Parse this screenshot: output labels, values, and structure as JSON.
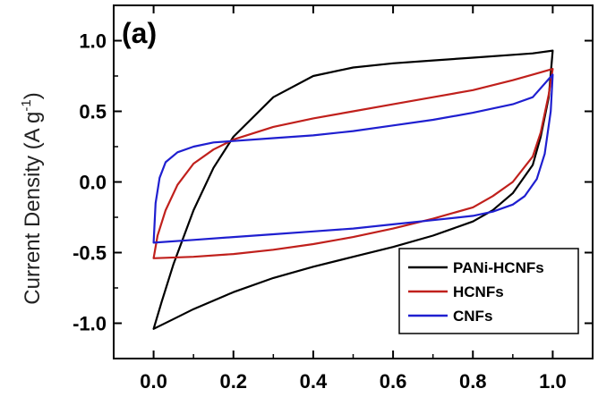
{
  "chart_data": {
    "type": "line",
    "panel_label": "(a)",
    "title": "",
    "xlabel": "",
    "ylabel": "Current Density (A g⁻¹)",
    "ylabel_main": "Current Density (A g",
    "ylabel_sup": "-1",
    "ylabel_close": ")",
    "xlim": [
      -0.1,
      1.1
    ],
    "ylim": [
      -1.25,
      1.25
    ],
    "x_ticks": [
      0.0,
      0.2,
      0.4,
      0.6,
      0.8,
      1.0
    ],
    "x_tick_labels": [
      "0.0",
      "0.2",
      "0.4",
      "0.6",
      "0.8",
      "1.0"
    ],
    "y_ticks": [
      -1.0,
      -0.5,
      0.0,
      0.5,
      1.0
    ],
    "y_tick_labels": [
      "-1.0",
      "-0.5",
      "0.0",
      "0.5",
      "1.0"
    ],
    "grid": false,
    "legend_position": "bottom-right",
    "series": [
      {
        "name": "PANi-HCNFs",
        "color": "#000000",
        "x": [
          0.0,
          0.02,
          0.05,
          0.1,
          0.15,
          0.2,
          0.3,
          0.4,
          0.5,
          0.6,
          0.7,
          0.8,
          0.9,
          0.95,
          1.0,
          0.99,
          0.97,
          0.95,
          0.9,
          0.85,
          0.8,
          0.7,
          0.6,
          0.5,
          0.4,
          0.3,
          0.2,
          0.1,
          0.05,
          0.0
        ],
        "y": [
          -1.04,
          -0.85,
          -0.58,
          -0.2,
          0.1,
          0.32,
          0.6,
          0.75,
          0.81,
          0.84,
          0.86,
          0.88,
          0.9,
          0.91,
          0.93,
          0.6,
          0.32,
          0.12,
          -0.08,
          -0.2,
          -0.28,
          -0.38,
          -0.46,
          -0.53,
          -0.6,
          -0.68,
          -0.78,
          -0.9,
          -0.97,
          -1.04
        ]
      },
      {
        "name": "HCNFs",
        "color": "#c0201c",
        "x": [
          0.0,
          0.01,
          0.03,
          0.06,
          0.1,
          0.15,
          0.2,
          0.3,
          0.4,
          0.5,
          0.6,
          0.7,
          0.8,
          0.9,
          0.95,
          1.0,
          0.99,
          0.97,
          0.95,
          0.9,
          0.85,
          0.8,
          0.7,
          0.6,
          0.5,
          0.4,
          0.3,
          0.2,
          0.1,
          0.0
        ],
        "y": [
          -0.54,
          -0.38,
          -0.2,
          -0.02,
          0.13,
          0.23,
          0.3,
          0.39,
          0.45,
          0.5,
          0.55,
          0.6,
          0.65,
          0.72,
          0.76,
          0.8,
          0.62,
          0.35,
          0.18,
          0.0,
          -0.1,
          -0.18,
          -0.26,
          -0.33,
          -0.39,
          -0.44,
          -0.48,
          -0.51,
          -0.53,
          -0.54
        ]
      },
      {
        "name": "CNFs",
        "color": "#1f1fd0",
        "x": [
          0.0,
          0.005,
          0.015,
          0.03,
          0.06,
          0.1,
          0.15,
          0.2,
          0.3,
          0.4,
          0.5,
          0.6,
          0.7,
          0.8,
          0.9,
          0.95,
          1.0,
          0.995,
          0.98,
          0.96,
          0.93,
          0.9,
          0.85,
          0.8,
          0.7,
          0.6,
          0.5,
          0.4,
          0.3,
          0.2,
          0.1,
          0.0
        ],
        "y": [
          -0.43,
          -0.15,
          0.03,
          0.14,
          0.21,
          0.25,
          0.28,
          0.29,
          0.31,
          0.33,
          0.36,
          0.4,
          0.44,
          0.49,
          0.55,
          0.6,
          0.76,
          0.5,
          0.2,
          0.02,
          -0.1,
          -0.16,
          -0.21,
          -0.24,
          -0.27,
          -0.3,
          -0.33,
          -0.35,
          -0.37,
          -0.39,
          -0.41,
          -0.43
        ]
      }
    ]
  }
}
